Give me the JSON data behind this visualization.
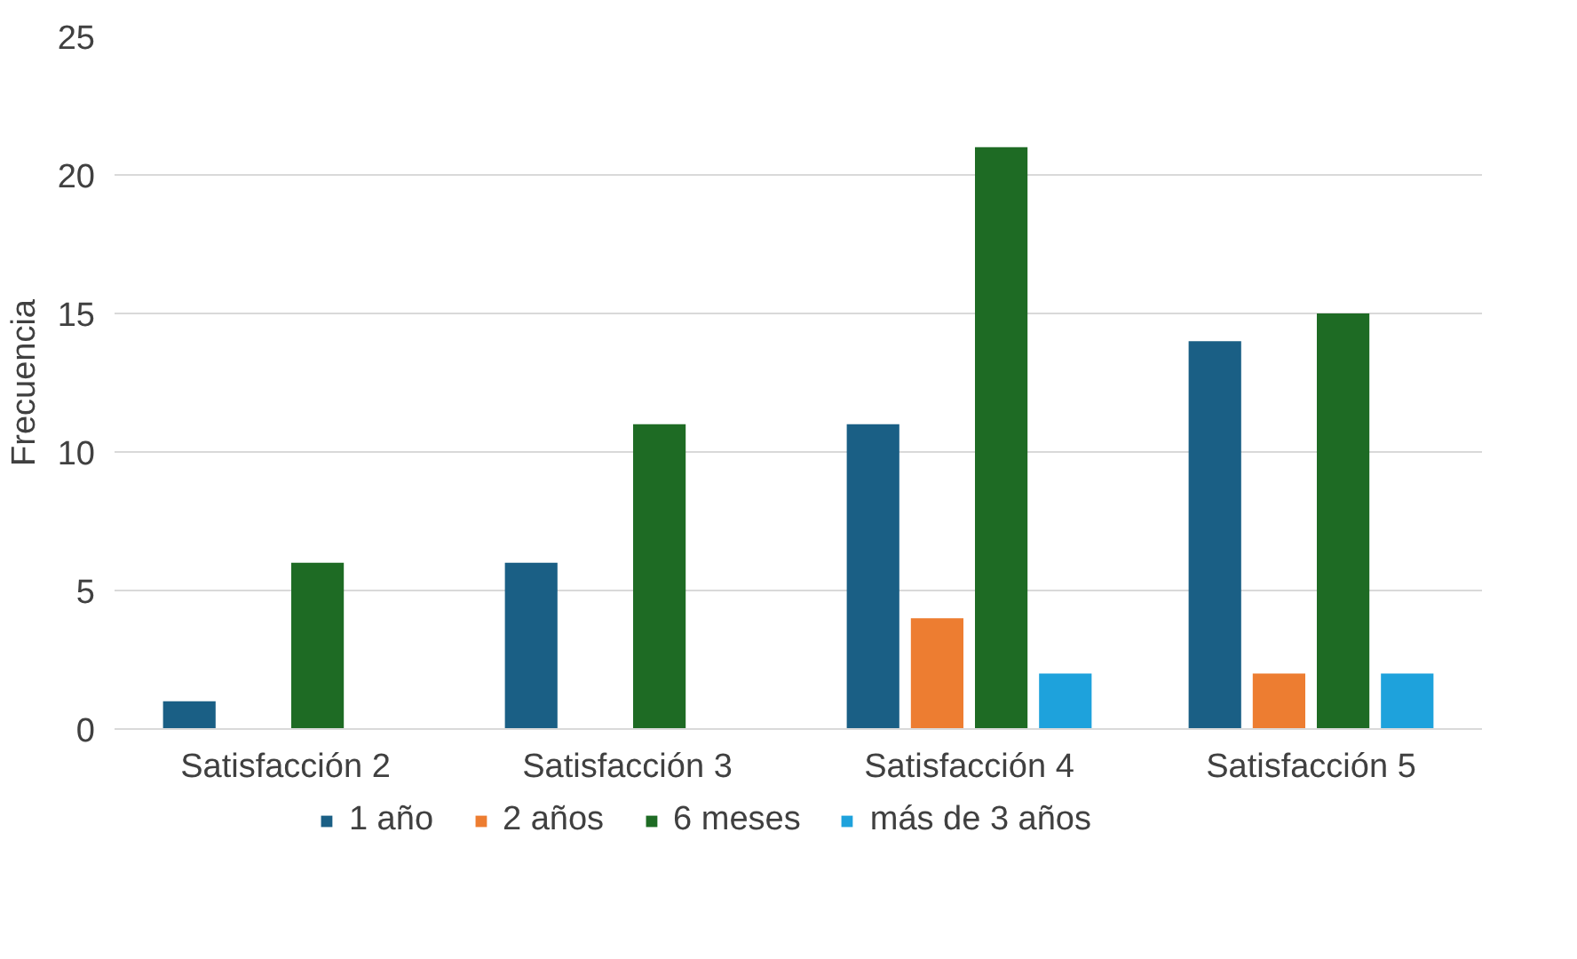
{
  "chart_data": {
    "type": "bar",
    "ylabel": "Frecuencia",
    "categories": [
      "Satisfacción 2",
      "Satisfacción 3",
      "Satisfacción 4",
      "Satisfacción 5"
    ],
    "series": [
      {
        "name": "1 año",
        "color": "#1a5f85",
        "values": [
          1,
          6,
          11,
          14
        ]
      },
      {
        "name": "2 años",
        "color": "#ed7d31",
        "values": [
          null,
          null,
          4,
          2
        ]
      },
      {
        "name": "6 meses",
        "color": "#1e6b24",
        "values": [
          6,
          11,
          21,
          15
        ]
      },
      {
        "name": "más de 3 años",
        "color": "#1ea2dc",
        "values": [
          null,
          null,
          2,
          2
        ]
      }
    ],
    "ylim": [
      0,
      25
    ],
    "yticks": [
      0,
      5,
      10,
      15,
      20,
      25
    ],
    "grid": "y",
    "legend": "bottom"
  }
}
